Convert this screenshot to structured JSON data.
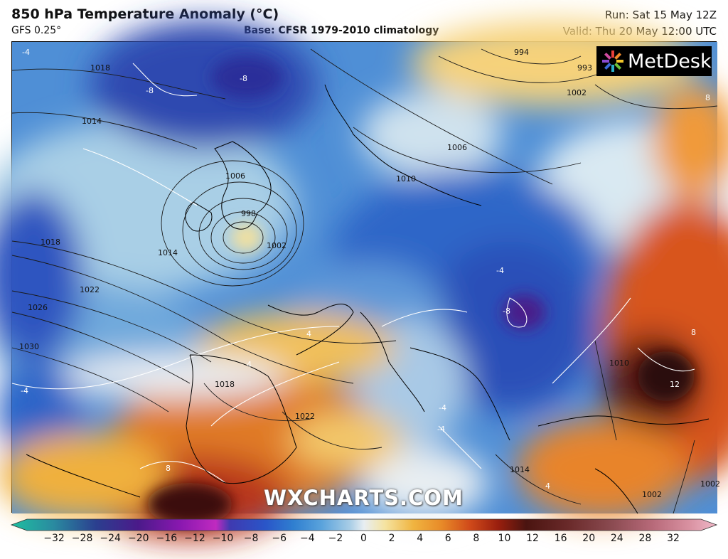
{
  "header": {
    "title": "850 hPa Temperature Anomaly (°C)",
    "model": "GFS 0.25°",
    "base": "Base: CFSR 1979-2010 climatology",
    "run": "Run: Sat 15 May 12Z",
    "valid": "Valid: Thu 20 May 12:00 UTC"
  },
  "branding": {
    "logo": "MetDesk",
    "watermark": "WXCHARTS.COM"
  },
  "map": {
    "region": "Europe, North Atlantic, North Africa",
    "pressure_labels": [
      "1018",
      "1014",
      "1018",
      "1014",
      "1022",
      "1026",
      "1030",
      "1006",
      "998",
      "1002",
      "994",
      "993",
      "1002",
      "1006",
      "1010",
      "1018",
      "1022",
      "1014",
      "1010",
      "1002",
      "1002"
    ],
    "anomaly_labels": [
      "-8",
      "-8",
      "-4",
      "-4",
      "-8",
      "-4",
      "-4",
      "4",
      "4",
      "8",
      "8",
      "8",
      "12",
      "4",
      "-4"
    ]
  },
  "colorbar": {
    "ticks": [
      "−32",
      "−28",
      "−24",
      "−20",
      "−16",
      "−12",
      "−10",
      "−8",
      "−6",
      "−4",
      "−2",
      "0",
      "2",
      "4",
      "6",
      "8",
      "10",
      "12",
      "16",
      "20",
      "24",
      "28",
      "32"
    ],
    "colors": [
      "#1fbfa0",
      "#2a8aa0",
      "#2b3f8f",
      "#4b1a8a",
      "#8a18b0",
      "#c02ac0",
      "#3f3ab0",
      "#2a55c8",
      "#2f7fd0",
      "#5aa3dc",
      "#a8cde6",
      "#e8eef2",
      "#f5e3a0",
      "#f0b440",
      "#e88a28",
      "#d04a1a",
      "#9a1f0e",
      "#4a1410",
      "#6a2a2a",
      "#8a4a50",
      "#b86a7a",
      "#d890a0",
      "#f0b8c8"
    ],
    "colors_meaning": "colorbar ramp from -32 to 32 °C"
  }
}
